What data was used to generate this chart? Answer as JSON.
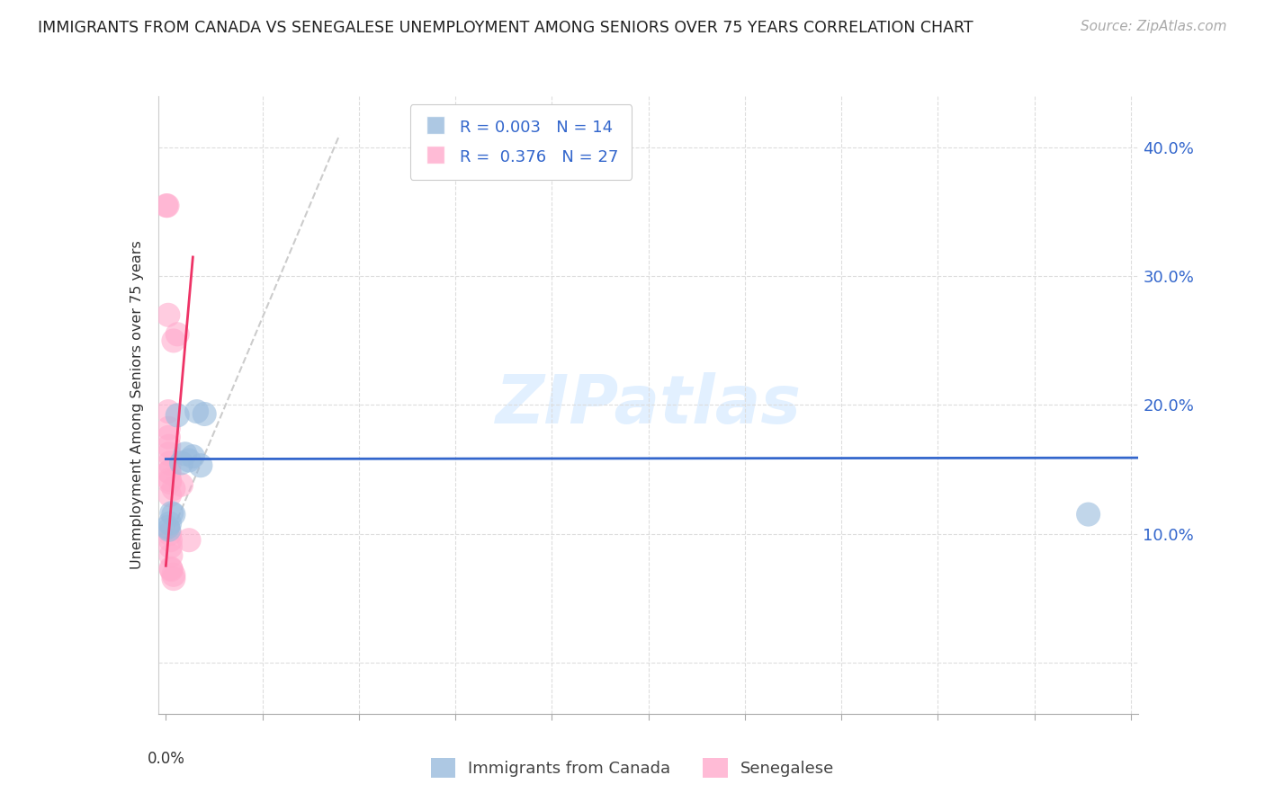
{
  "title": "IMMIGRANTS FROM CANADA VS SENEGALESE UNEMPLOYMENT AMONG SENIORS OVER 75 YEARS CORRELATION CHART",
  "source": "Source: ZipAtlas.com",
  "ylabel": "Unemployment Among Seniors over 75 years",
  "xlim": [
    -0.002,
    0.252
  ],
  "ylim": [
    -0.04,
    0.44
  ],
  "yticks": [
    0.0,
    0.1,
    0.2,
    0.3,
    0.4
  ],
  "ytick_labels": [
    "",
    "10.0%",
    "20.0%",
    "30.0%",
    "40.0%"
  ],
  "xticks": [
    0.0,
    0.025,
    0.05,
    0.075,
    0.1,
    0.125,
    0.15,
    0.175,
    0.2,
    0.225,
    0.25
  ],
  "blue_color": "#99BBDD",
  "pink_color": "#FFAACC",
  "trend_blue_color": "#3366CC",
  "trend_pink_color": "#EE3366",
  "trend_dashed_color": "#CCCCCC",
  "blue_scatter": [
    [
      0.0005,
      0.105
    ],
    [
      0.0008,
      0.103
    ],
    [
      0.001,
      0.108
    ],
    [
      0.0015,
      0.116
    ],
    [
      0.002,
      0.115
    ],
    [
      0.003,
      0.192
    ],
    [
      0.004,
      0.155
    ],
    [
      0.005,
      0.162
    ],
    [
      0.006,
      0.157
    ],
    [
      0.007,
      0.16
    ],
    [
      0.008,
      0.195
    ],
    [
      0.009,
      0.153
    ],
    [
      0.01,
      0.193
    ],
    [
      0.239,
      0.115
    ]
  ],
  "pink_scatter": [
    [
      0.0001,
      0.355
    ],
    [
      0.0004,
      0.355
    ],
    [
      0.0006,
      0.27
    ],
    [
      0.0006,
      0.195
    ],
    [
      0.0007,
      0.182
    ],
    [
      0.0007,
      0.175
    ],
    [
      0.0008,
      0.168
    ],
    [
      0.0008,
      0.162
    ],
    [
      0.0008,
      0.148
    ],
    [
      0.0009,
      0.148
    ],
    [
      0.001,
      0.155
    ],
    [
      0.001,
      0.142
    ],
    [
      0.001,
      0.14
    ],
    [
      0.001,
      0.13
    ],
    [
      0.001,
      0.1
    ],
    [
      0.0012,
      0.095
    ],
    [
      0.0012,
      0.09
    ],
    [
      0.0013,
      0.083
    ],
    [
      0.0013,
      0.073
    ],
    [
      0.0014,
      0.072
    ],
    [
      0.002,
      0.25
    ],
    [
      0.002,
      0.135
    ],
    [
      0.002,
      0.068
    ],
    [
      0.002,
      0.065
    ],
    [
      0.003,
      0.255
    ],
    [
      0.004,
      0.138
    ],
    [
      0.006,
      0.095
    ]
  ],
  "blue_trend_x": [
    0.0,
    0.252
  ],
  "blue_trend_y": [
    0.158,
    0.159
  ],
  "pink_trend_x": [
    0.0,
    0.007
  ],
  "pink_trend_y": [
    0.075,
    0.315
  ],
  "dashed_trend_x": [
    0.0,
    0.045
  ],
  "dashed_trend_y": [
    0.09,
    0.41
  ]
}
